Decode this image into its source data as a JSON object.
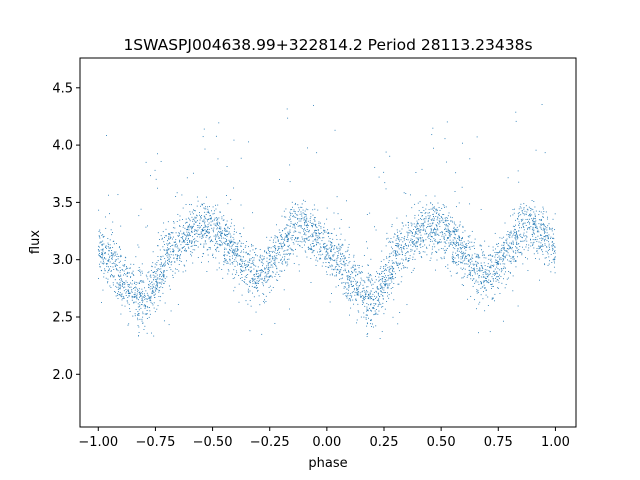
{
  "chart_data": {
    "type": "scatter",
    "title": "1SWASPJ004638.99+322814.2 Period 28113.23438s",
    "xlabel": "phase",
    "ylabel": "flux",
    "xlim": [
      -1.08,
      1.09
    ],
    "ylim": [
      1.54,
      4.76
    ],
    "xticks": [
      -1.0,
      -0.75,
      -0.5,
      -0.25,
      0.0,
      0.25,
      0.5,
      0.75,
      1.0
    ],
    "xtick_labels": [
      "−1.00",
      "−0.75",
      "−0.50",
      "−0.25",
      "0.00",
      "0.25",
      "0.50",
      "0.75",
      "1.00"
    ],
    "yticks": [
      2.0,
      2.5,
      3.0,
      3.5,
      4.0,
      4.5
    ],
    "ytick_labels": [
      "2.0",
      "2.5",
      "3.0",
      "3.5",
      "4.0",
      "4.5"
    ],
    "grid": false,
    "legend": "none",
    "marker_color": "#1f77b4",
    "phase_curve": {
      "phase": [
        0.0,
        0.05,
        0.1,
        0.15,
        0.2,
        0.25,
        0.3,
        0.35,
        0.4,
        0.45,
        0.5,
        0.55,
        0.6,
        0.65,
        0.7,
        0.75,
        0.8,
        0.85,
        0.9,
        0.95,
        1.0
      ],
      "flux": [
        3.1,
        3.0,
        2.85,
        2.72,
        2.65,
        2.8,
        3.0,
        3.15,
        3.25,
        3.3,
        3.28,
        3.2,
        3.05,
        2.9,
        2.85,
        2.95,
        3.1,
        3.25,
        3.28,
        3.2,
        3.1
      ],
      "scatter_sigma": 0.12,
      "n_points_per_cycle": 2200
    }
  }
}
